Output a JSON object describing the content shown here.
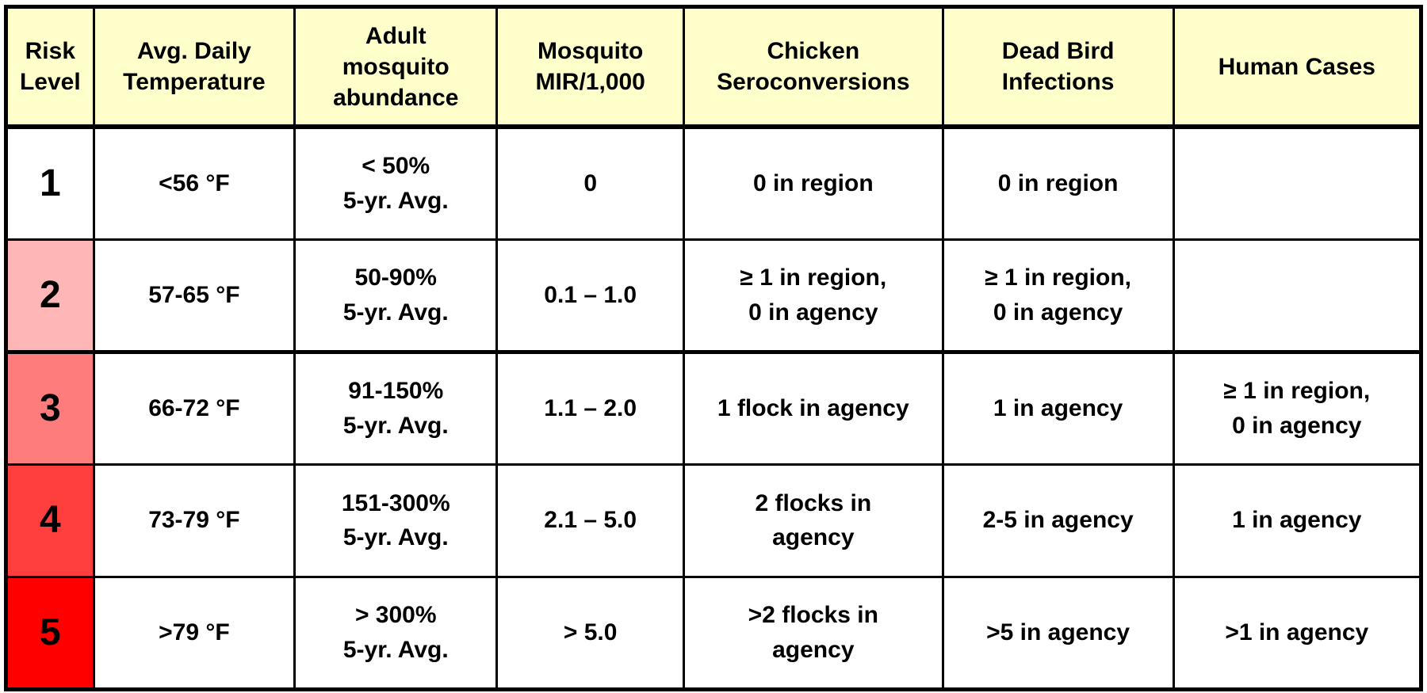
{
  "headers": [
    [
      "Risk",
      "Level"
    ],
    [
      "Avg. Daily",
      "Temperature"
    ],
    [
      "Adult",
      "mosquito",
      "abundance"
    ],
    [
      "Mosquito",
      "MIR/1,000"
    ],
    [
      "Chicken",
      "Seroconversions"
    ],
    [
      "Dead Bird",
      "Infections"
    ],
    [
      "Human Cases"
    ]
  ],
  "colors": {
    "header_bg": "#FFFFCC",
    "level_1": "#FFFFFF",
    "level_2": "#FFB6B6",
    "level_3": "#FF7C7C",
    "level_4": "#FF3E3E",
    "level_5": "#FF0000"
  },
  "rows": [
    {
      "level": "1",
      "temp": "<56 °F",
      "abundance": [
        "< 50%",
        "5-yr. Avg."
      ],
      "mir": "0",
      "chicken": [
        "0 in region"
      ],
      "bird": [
        "0 in region"
      ],
      "human": []
    },
    {
      "level": "2",
      "temp": "57-65 °F",
      "abundance": [
        "50-90%",
        "5-yr. Avg."
      ],
      "mir": "0.1  –  1.0",
      "chicken": [
        "≥ 1 in region,",
        "0 in agency"
      ],
      "bird": [
        "≥ 1 in region,",
        "0 in agency"
      ],
      "human": []
    },
    {
      "level": "3",
      "temp": "66-72 °F",
      "abundance": [
        "91-150%",
        "5-yr. Avg."
      ],
      "mir": "1.1  –  2.0",
      "chicken": [
        "1 flock in agency"
      ],
      "bird": [
        "1 in agency"
      ],
      "human": [
        "≥ 1 in region,",
        "0 in agency"
      ]
    },
    {
      "level": "4",
      "temp": "73-79 °F",
      "abundance": [
        "151-300%",
        "5-yr. Avg."
      ],
      "mir": "2.1  –  5.0",
      "chicken": [
        "2 flocks in",
        "agency"
      ],
      "bird": [
        "2-5 in agency"
      ],
      "human": [
        "1 in agency"
      ]
    },
    {
      "level": "5",
      "temp": ">79 °F",
      "abundance": [
        "> 300%",
        "5-yr. Avg."
      ],
      "mir": "> 5.0",
      "chicken": [
        ">2 flocks in",
        "agency"
      ],
      "bird": [
        ">5 in agency"
      ],
      "human": [
        ">1 in agency"
      ]
    }
  ]
}
